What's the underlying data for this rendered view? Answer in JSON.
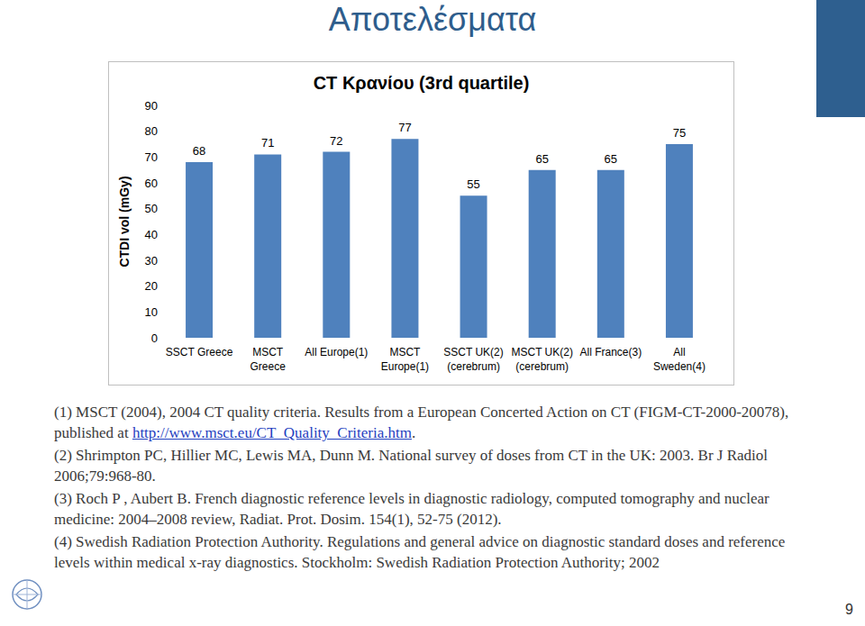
{
  "heading": "Αποτελέσματα",
  "page": "9",
  "footnotes": [
    [
      "(1) MSCT (2004), 2004 CT quality criteria. Results from a European Concerted Action on CT (FIGM-CT-2000-20078), published at ",
      {
        "link": "http://www.msct.eu/CT_Quality_Criteria.htm"
      },
      "."
    ],
    [
      "(2) Shrimpton PC, Hillier MC, Lewis MA, Dunn M. National survey of doses from CT in the UK: 2003. Br J Radiol 2006;79:968-80."
    ],
    [
      "(3) Roch P , Aubert B. French diagnostic reference levels in diagnostic radiology, computed tomography and nuclear medicine: 2004–2008 review, Radiat. Prot. Dosim. 154(1), 52-75 (2012)."
    ],
    [
      "(4) Swedish Radiation Protection Authority. Regulations and general advice on diagnostic standard doses and reference levels within medical x-ray diagnostics. Stockholm: Swedish Radiation Protection Authority; 2002"
    ]
  ],
  "chart_data": {
    "type": "bar",
    "title": "CT Κρανίου (3rd quartile)",
    "y_label": "CTDI vol (mGy)",
    "categories": [
      "SSCT Greece",
      "MSCT\nGreece",
      "All Europe(1)",
      "MSCT\nEurope(1)",
      "SSCT UK(2)\n(cerebrum)",
      "MSCT UK(2)\n(cerebrum)",
      "All France(3)",
      "All\nSweden(4)"
    ],
    "values": [
      68,
      71,
      72,
      77,
      55,
      65,
      65,
      75
    ],
    "color": "#4f81bd",
    "ylim": [
      0,
      90
    ],
    "yticks": [
      0,
      10,
      20,
      30,
      40,
      50,
      60,
      70,
      80,
      90
    ],
    "grid": false,
    "data_labels": true
  }
}
